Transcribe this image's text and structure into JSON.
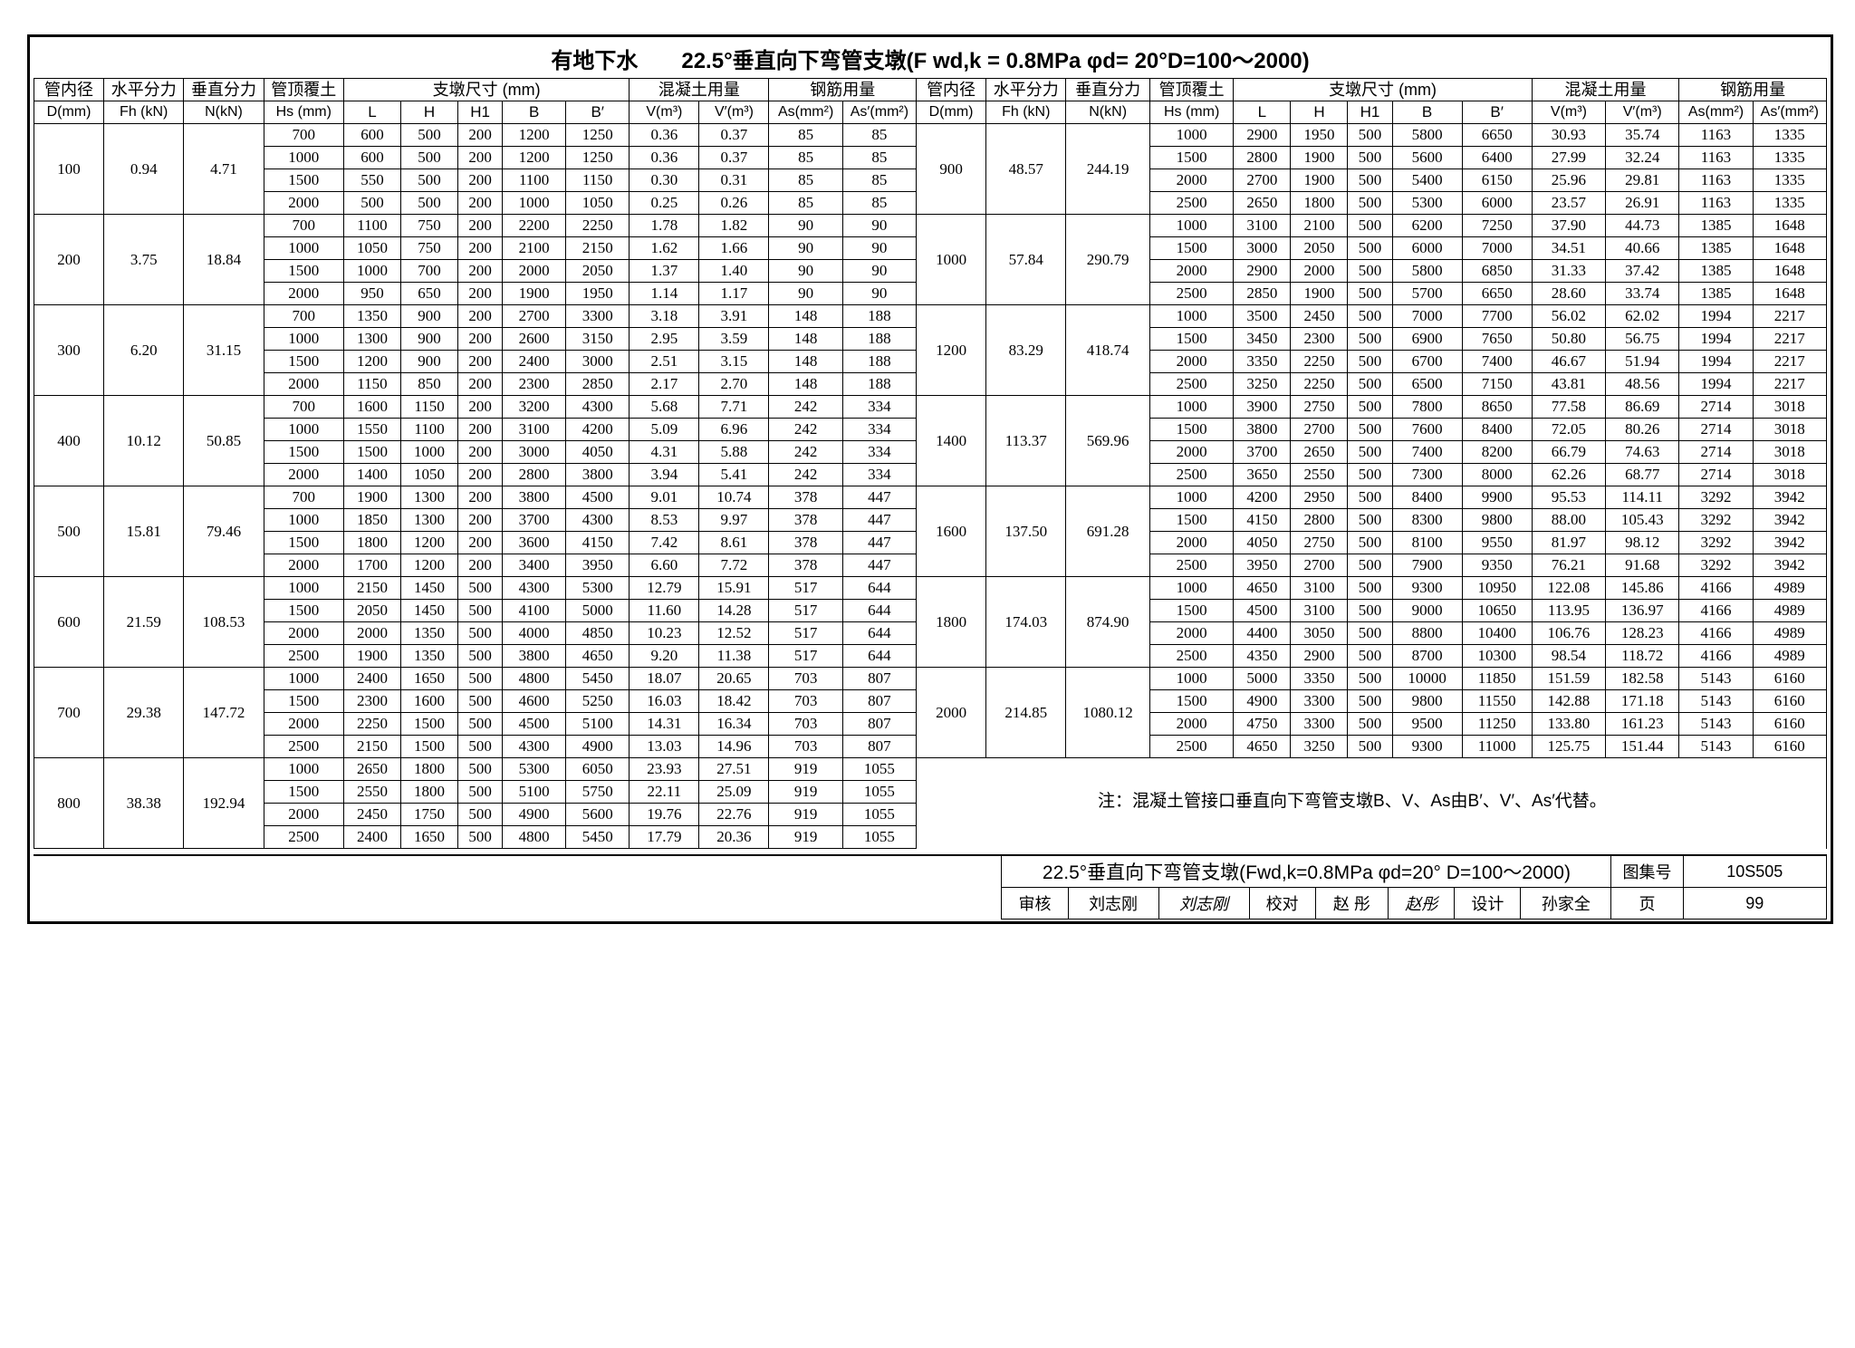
{
  "title": "有地下水　　22.5°垂直向下弯管支墩(F wd,k = 0.8MPa φd= 20°D=100～2000)",
  "hdr": {
    "c1": "管内径",
    "c1u": "D(mm)",
    "c2": "水平分力",
    "c2u": "Fh (kN)",
    "c3": "垂直分力",
    "c3u": "N(kN)",
    "c4": "管顶覆土",
    "c4u": "Hs (mm)",
    "c5": "支墩尺寸 (mm)",
    "c5a": "L",
    "c5b": "H",
    "c5c": "H1",
    "c5d": "B",
    "c5e": "B′",
    "c6": "混凝土用量",
    "c6a": "V(m³)",
    "c6b": "V′(m³)",
    "c7": "钢筋用量",
    "c7a": "As(mm²)",
    "c7b": "As′(mm²)"
  },
  "left": [
    {
      "D": "100",
      "Fh": "0.94",
      "N": "4.71",
      "rows": [
        [
          "700",
          "600",
          "500",
          "200",
          "1200",
          "1250",
          "0.36",
          "0.37",
          "85",
          "85"
        ],
        [
          "1000",
          "600",
          "500",
          "200",
          "1200",
          "1250",
          "0.36",
          "0.37",
          "85",
          "85"
        ],
        [
          "1500",
          "550",
          "500",
          "200",
          "1100",
          "1150",
          "0.30",
          "0.31",
          "85",
          "85"
        ],
        [
          "2000",
          "500",
          "500",
          "200",
          "1000",
          "1050",
          "0.25",
          "0.26",
          "85",
          "85"
        ]
      ]
    },
    {
      "D": "200",
      "Fh": "3.75",
      "N": "18.84",
      "rows": [
        [
          "700",
          "1100",
          "750",
          "200",
          "2200",
          "2250",
          "1.78",
          "1.82",
          "90",
          "90"
        ],
        [
          "1000",
          "1050",
          "750",
          "200",
          "2100",
          "2150",
          "1.62",
          "1.66",
          "90",
          "90"
        ],
        [
          "1500",
          "1000",
          "700",
          "200",
          "2000",
          "2050",
          "1.37",
          "1.40",
          "90",
          "90"
        ],
        [
          "2000",
          "950",
          "650",
          "200",
          "1900",
          "1950",
          "1.14",
          "1.17",
          "90",
          "90"
        ]
      ]
    },
    {
      "D": "300",
      "Fh": "6.20",
      "N": "31.15",
      "rows": [
        [
          "700",
          "1350",
          "900",
          "200",
          "2700",
          "3300",
          "3.18",
          "3.91",
          "148",
          "188"
        ],
        [
          "1000",
          "1300",
          "900",
          "200",
          "2600",
          "3150",
          "2.95",
          "3.59",
          "148",
          "188"
        ],
        [
          "1500",
          "1200",
          "900",
          "200",
          "2400",
          "3000",
          "2.51",
          "3.15",
          "148",
          "188"
        ],
        [
          "2000",
          "1150",
          "850",
          "200",
          "2300",
          "2850",
          "2.17",
          "2.70",
          "148",
          "188"
        ]
      ]
    },
    {
      "D": "400",
      "Fh": "10.12",
      "N": "50.85",
      "rows": [
        [
          "700",
          "1600",
          "1150",
          "200",
          "3200",
          "4300",
          "5.68",
          "7.71",
          "242",
          "334"
        ],
        [
          "1000",
          "1550",
          "1100",
          "200",
          "3100",
          "4200",
          "5.09",
          "6.96",
          "242",
          "334"
        ],
        [
          "1500",
          "1500",
          "1000",
          "200",
          "3000",
          "4050",
          "4.31",
          "5.88",
          "242",
          "334"
        ],
        [
          "2000",
          "1400",
          "1050",
          "200",
          "2800",
          "3800",
          "3.94",
          "5.41",
          "242",
          "334"
        ]
      ]
    },
    {
      "D": "500",
      "Fh": "15.81",
      "N": "79.46",
      "rows": [
        [
          "700",
          "1900",
          "1300",
          "200",
          "3800",
          "4500",
          "9.01",
          "10.74",
          "378",
          "447"
        ],
        [
          "1000",
          "1850",
          "1300",
          "200",
          "3700",
          "4300",
          "8.53",
          "9.97",
          "378",
          "447"
        ],
        [
          "1500",
          "1800",
          "1200",
          "200",
          "3600",
          "4150",
          "7.42",
          "8.61",
          "378",
          "447"
        ],
        [
          "2000",
          "1700",
          "1200",
          "200",
          "3400",
          "3950",
          "6.60",
          "7.72",
          "378",
          "447"
        ]
      ]
    },
    {
      "D": "600",
      "Fh": "21.59",
      "N": "108.53",
      "rows": [
        [
          "1000",
          "2150",
          "1450",
          "500",
          "4300",
          "5300",
          "12.79",
          "15.91",
          "517",
          "644"
        ],
        [
          "1500",
          "2050",
          "1450",
          "500",
          "4100",
          "5000",
          "11.60",
          "14.28",
          "517",
          "644"
        ],
        [
          "2000",
          "2000",
          "1350",
          "500",
          "4000",
          "4850",
          "10.23",
          "12.52",
          "517",
          "644"
        ],
        [
          "2500",
          "1900",
          "1350",
          "500",
          "3800",
          "4650",
          "9.20",
          "11.38",
          "517",
          "644"
        ]
      ]
    },
    {
      "D": "700",
      "Fh": "29.38",
      "N": "147.72",
      "rows": [
        [
          "1000",
          "2400",
          "1650",
          "500",
          "4800",
          "5450",
          "18.07",
          "20.65",
          "703",
          "807"
        ],
        [
          "1500",
          "2300",
          "1600",
          "500",
          "4600",
          "5250",
          "16.03",
          "18.42",
          "703",
          "807"
        ],
        [
          "2000",
          "2250",
          "1500",
          "500",
          "4500",
          "5100",
          "14.31",
          "16.34",
          "703",
          "807"
        ],
        [
          "2500",
          "2150",
          "1500",
          "500",
          "4300",
          "4900",
          "13.03",
          "14.96",
          "703",
          "807"
        ]
      ]
    },
    {
      "D": "800",
      "Fh": "38.38",
      "N": "192.94",
      "rows": [
        [
          "1000",
          "2650",
          "1800",
          "500",
          "5300",
          "6050",
          "23.93",
          "27.51",
          "919",
          "1055"
        ],
        [
          "1500",
          "2550",
          "1800",
          "500",
          "5100",
          "5750",
          "22.11",
          "25.09",
          "919",
          "1055"
        ],
        [
          "2000",
          "2450",
          "1750",
          "500",
          "4900",
          "5600",
          "19.76",
          "22.76",
          "919",
          "1055"
        ],
        [
          "2500",
          "2400",
          "1650",
          "500",
          "4800",
          "5450",
          "17.79",
          "20.36",
          "919",
          "1055"
        ]
      ]
    }
  ],
  "right": [
    {
      "D": "900",
      "Fh": "48.57",
      "N": "244.19",
      "rows": [
        [
          "1000",
          "2900",
          "1950",
          "500",
          "5800",
          "6650",
          "30.93",
          "35.74",
          "1163",
          "1335"
        ],
        [
          "1500",
          "2800",
          "1900",
          "500",
          "5600",
          "6400",
          "27.99",
          "32.24",
          "1163",
          "1335"
        ],
        [
          "2000",
          "2700",
          "1900",
          "500",
          "5400",
          "6150",
          "25.96",
          "29.81",
          "1163",
          "1335"
        ],
        [
          "2500",
          "2650",
          "1800",
          "500",
          "5300",
          "6000",
          "23.57",
          "26.91",
          "1163",
          "1335"
        ]
      ]
    },
    {
      "D": "1000",
      "Fh": "57.84",
      "N": "290.79",
      "rows": [
        [
          "1000",
          "3100",
          "2100",
          "500",
          "6200",
          "7250",
          "37.90",
          "44.73",
          "1385",
          "1648"
        ],
        [
          "1500",
          "3000",
          "2050",
          "500",
          "6000",
          "7000",
          "34.51",
          "40.66",
          "1385",
          "1648"
        ],
        [
          "2000",
          "2900",
          "2000",
          "500",
          "5800",
          "6850",
          "31.33",
          "37.42",
          "1385",
          "1648"
        ],
        [
          "2500",
          "2850",
          "1900",
          "500",
          "5700",
          "6650",
          "28.60",
          "33.74",
          "1385",
          "1648"
        ]
      ]
    },
    {
      "D": "1200",
      "Fh": "83.29",
      "N": "418.74",
      "rows": [
        [
          "1000",
          "3500",
          "2450",
          "500",
          "7000",
          "7700",
          "56.02",
          "62.02",
          "1994",
          "2217"
        ],
        [
          "1500",
          "3450",
          "2300",
          "500",
          "6900",
          "7650",
          "50.80",
          "56.75",
          "1994",
          "2217"
        ],
        [
          "2000",
          "3350",
          "2250",
          "500",
          "6700",
          "7400",
          "46.67",
          "51.94",
          "1994",
          "2217"
        ],
        [
          "2500",
          "3250",
          "2250",
          "500",
          "6500",
          "7150",
          "43.81",
          "48.56",
          "1994",
          "2217"
        ]
      ]
    },
    {
      "D": "1400",
      "Fh": "113.37",
      "N": "569.96",
      "rows": [
        [
          "1000",
          "3900",
          "2750",
          "500",
          "7800",
          "8650",
          "77.58",
          "86.69",
          "2714",
          "3018"
        ],
        [
          "1500",
          "3800",
          "2700",
          "500",
          "7600",
          "8400",
          "72.05",
          "80.26",
          "2714",
          "3018"
        ],
        [
          "2000",
          "3700",
          "2650",
          "500",
          "7400",
          "8200",
          "66.79",
          "74.63",
          "2714",
          "3018"
        ],
        [
          "2500",
          "3650",
          "2550",
          "500",
          "7300",
          "8000",
          "62.26",
          "68.77",
          "2714",
          "3018"
        ]
      ]
    },
    {
      "D": "1600",
      "Fh": "137.50",
      "N": "691.28",
      "rows": [
        [
          "1000",
          "4200",
          "2950",
          "500",
          "8400",
          "9900",
          "95.53",
          "114.11",
          "3292",
          "3942"
        ],
        [
          "1500",
          "4150",
          "2800",
          "500",
          "8300",
          "9800",
          "88.00",
          "105.43",
          "3292",
          "3942"
        ],
        [
          "2000",
          "4050",
          "2750",
          "500",
          "8100",
          "9550",
          "81.97",
          "98.12",
          "3292",
          "3942"
        ],
        [
          "2500",
          "3950",
          "2700",
          "500",
          "7900",
          "9350",
          "76.21",
          "91.68",
          "3292",
          "3942"
        ]
      ]
    },
    {
      "D": "1800",
      "Fh": "174.03",
      "N": "874.90",
      "rows": [
        [
          "1000",
          "4650",
          "3100",
          "500",
          "9300",
          "10950",
          "122.08",
          "145.86",
          "4166",
          "4989"
        ],
        [
          "1500",
          "4500",
          "3100",
          "500",
          "9000",
          "10650",
          "113.95",
          "136.97",
          "4166",
          "4989"
        ],
        [
          "2000",
          "4400",
          "3050",
          "500",
          "8800",
          "10400",
          "106.76",
          "128.23",
          "4166",
          "4989"
        ],
        [
          "2500",
          "4350",
          "2900",
          "500",
          "8700",
          "10300",
          "98.54",
          "118.72",
          "4166",
          "4989"
        ]
      ]
    },
    {
      "D": "2000",
      "Fh": "214.85",
      "N": "1080.12",
      "rows": [
        [
          "1000",
          "5000",
          "3350",
          "500",
          "10000",
          "11850",
          "151.59",
          "182.58",
          "5143",
          "6160"
        ],
        [
          "1500",
          "4900",
          "3300",
          "500",
          "9800",
          "11550",
          "142.88",
          "171.18",
          "5143",
          "6160"
        ],
        [
          "2000",
          "4750",
          "3300",
          "500",
          "9500",
          "11250",
          "133.80",
          "161.23",
          "5143",
          "6160"
        ],
        [
          "2500",
          "4650",
          "3250",
          "500",
          "9300",
          "11000",
          "125.75",
          "151.44",
          "5143",
          "6160"
        ]
      ]
    }
  ],
  "note": "注：混凝土管接口垂直向下弯管支墩B、V、As由B′、V′、As′代替。",
  "foot": {
    "titlebar": "22.5°垂直向下弯管支墩(Fwd,k=0.8MPa φd=20° D=100～2000)",
    "tjh": "图集号",
    "tjhv": "10S505",
    "sh": "审核",
    "shv": "刘志刚",
    "jd": "校对",
    "jdv": "赵 彤",
    "sj": "设计",
    "sjv": "孙家全",
    "page": "页",
    "pagev": "99"
  }
}
